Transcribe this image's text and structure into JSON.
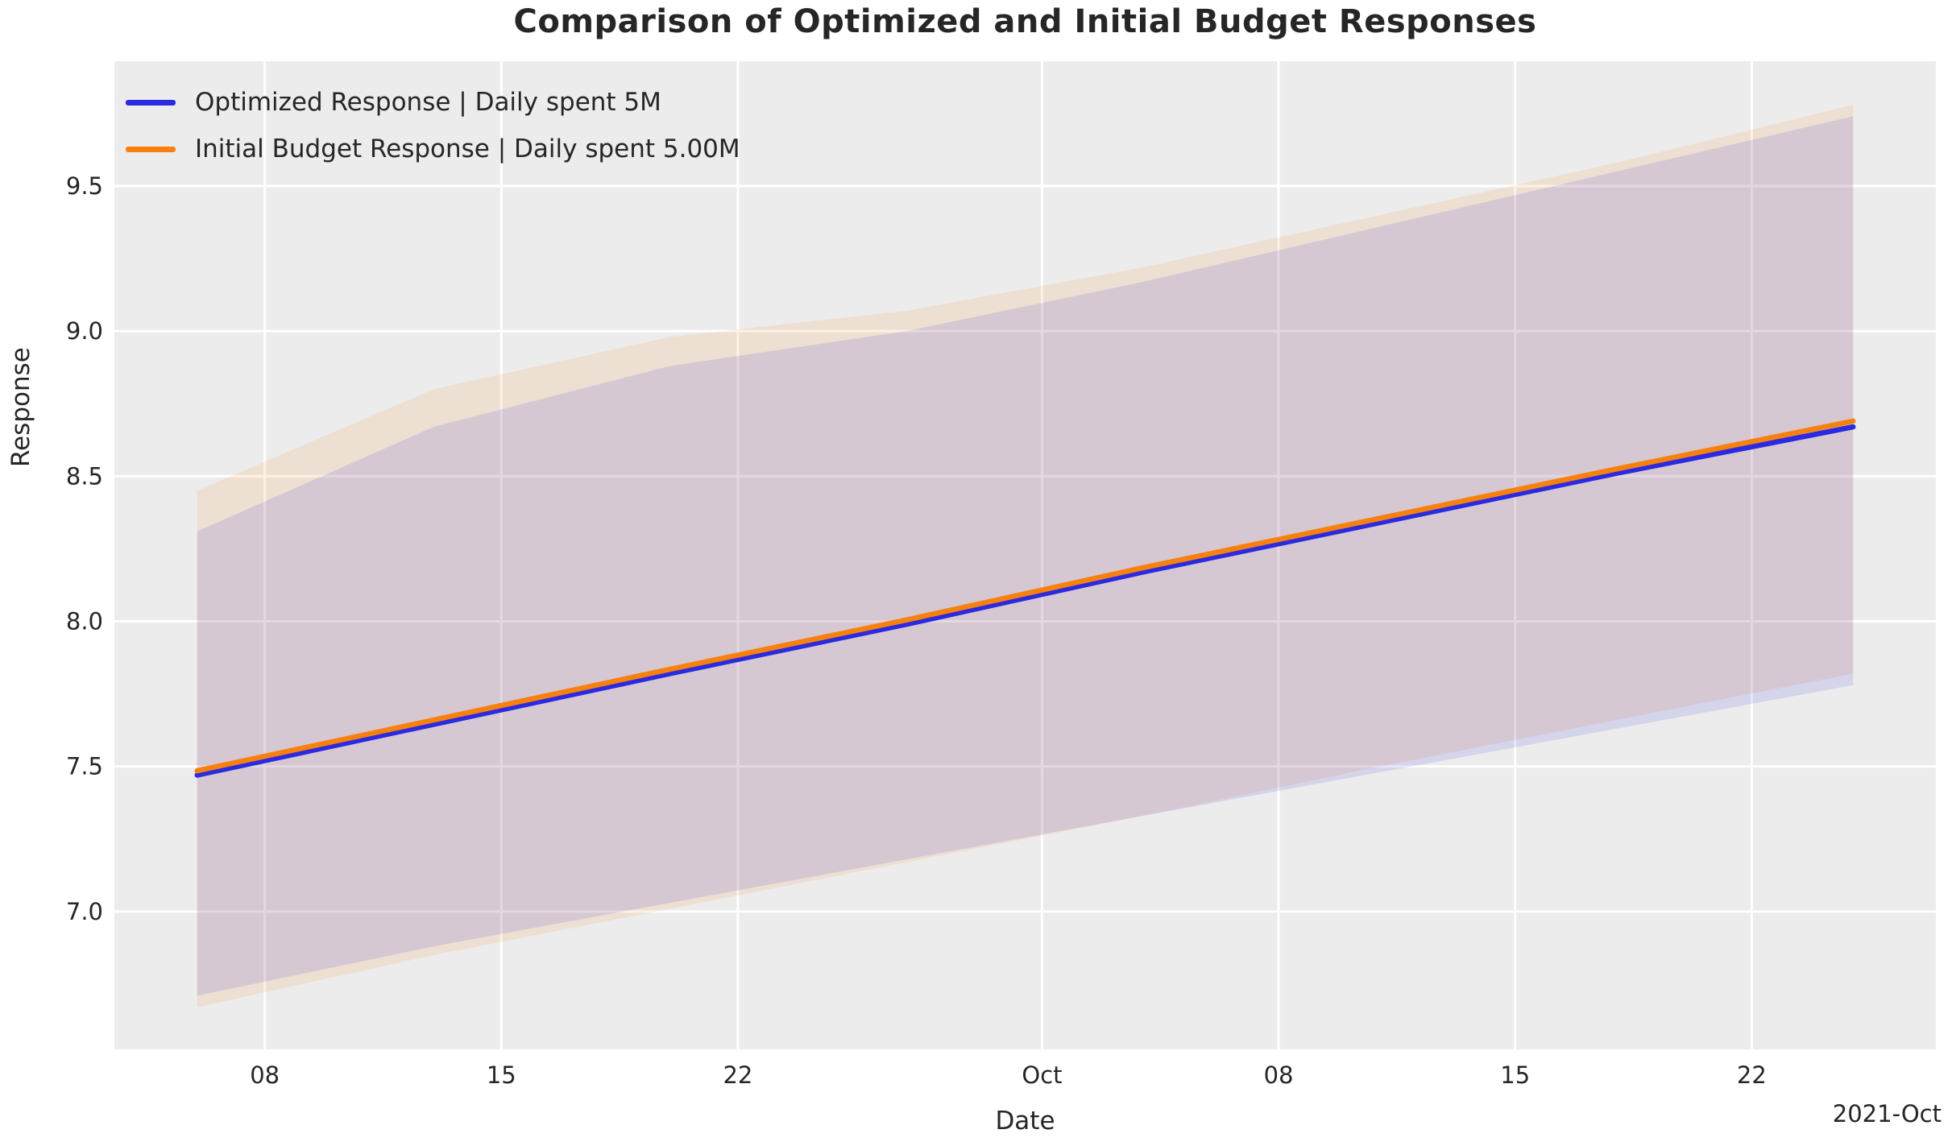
{
  "title": "Comparison of Optimized and Initial Budget Responses",
  "axes": {
    "xlabel": "Date",
    "ylabel": "Response",
    "offset_label": "2021-Oct"
  },
  "legend": [
    {
      "label": "Optimized Response | Daily spent 5M",
      "color": "#2a2ae0"
    },
    {
      "label": "Initial Budget Response | Daily spent 5.00M",
      "color": "#f8810e"
    }
  ],
  "colors": {
    "figure_background": "#ffffff",
    "axes_background": "#ececec",
    "gridline": "#ffffff",
    "text": "#262626",
    "optimized_line": "#2a2ae0",
    "initial_line": "#f8810e",
    "optimized_band": "#1515e0",
    "initial_band": "#f8820e"
  },
  "chart_data": {
    "type": "line",
    "title": "Comparison of Optimized and Initial Budget Responses",
    "xlabel": "Date",
    "ylabel": "Response",
    "offset_label": "2021-Oct",
    "legend_position": "upper left",
    "grid": true,
    "x_dates": [
      "2021-09-06",
      "2021-09-13",
      "2021-09-20",
      "2021-09-27",
      "2021-10-04",
      "2021-10-11",
      "2021-10-18",
      "2021-10-25"
    ],
    "x_days": [
      0,
      7,
      14,
      21,
      28,
      35,
      42,
      49
    ],
    "series": [
      {
        "name": "Optimized Response | Daily spent 5M",
        "color": "#2a2ae0",
        "band_opacity": 0.11,
        "values": [
          7.47,
          7.645,
          7.82,
          7.99,
          8.17,
          8.34,
          8.51,
          8.67
        ],
        "band_upper": [
          8.31,
          8.67,
          8.88,
          9.0,
          9.17,
          9.36,
          9.55,
          9.74
        ],
        "band_lower": [
          6.71,
          6.88,
          7.03,
          7.18,
          7.33,
          7.48,
          7.63,
          7.78
        ]
      },
      {
        "name": "Initial Budget Response | Daily spent 5.00M",
        "color": "#f8810e",
        "band_opacity": 0.12,
        "values": [
          7.485,
          7.66,
          7.835,
          8.005,
          8.185,
          8.355,
          8.525,
          8.69
        ],
        "band_upper": [
          8.45,
          8.8,
          8.98,
          9.07,
          9.22,
          9.4,
          9.58,
          9.78
        ],
        "band_lower": [
          6.67,
          6.85,
          7.01,
          7.17,
          7.33,
          7.5,
          7.66,
          7.82
        ]
      }
    ],
    "xticks": {
      "days": [
        2,
        9,
        16,
        25,
        32,
        39,
        46
      ],
      "labels": [
        "08",
        "15",
        "22",
        "Oct",
        "08",
        "15",
        "22"
      ]
    },
    "yticks": [
      7.0,
      7.5,
      8.0,
      8.5,
      9.0,
      9.5
    ],
    "ytick_labels": [
      "7.0",
      "7.5",
      "8.0",
      "8.5",
      "9.0",
      "9.5"
    ],
    "xlim_days": [
      -2.45,
      51.45
    ],
    "ylim": [
      6.525,
      9.93
    ]
  }
}
